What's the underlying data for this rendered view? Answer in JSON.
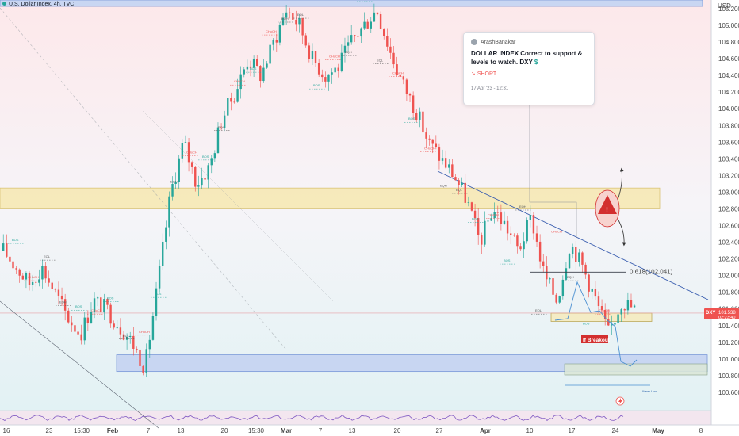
{
  "header": {
    "instrument": "U.S. Dollar Index, 4h, TVC"
  },
  "price_axis": {
    "currency": "USD",
    "ticks": [
      "105.200",
      "105.000",
      "104.800",
      "104.600",
      "104.400",
      "104.200",
      "104.000",
      "103.800",
      "103.600",
      "103.400",
      "103.200",
      "103.000",
      "102.800",
      "102.600",
      "102.400",
      "102.200",
      "102.000",
      "101.800",
      "101.600",
      "101.400",
      "101.200",
      "101.000",
      "100.800",
      "100.600"
    ],
    "current_symbol": "DXY",
    "current_price": "101.538",
    "countdown": "02:23:40"
  },
  "time_axis": {
    "labels": [
      "16",
      "23",
      "15:30",
      "Feb",
      "7",
      "13",
      "20",
      "15:30",
      "Mar",
      "7",
      "13",
      "20",
      "27",
      "Apr",
      "10",
      "17",
      "24",
      "May",
      "8"
    ]
  },
  "idea_card": {
    "author": "ArashBanakar",
    "title": "DOLLAR INDEX Correct to support & levels to watch. DXY",
    "title_symbol": "$",
    "direction": "SHORT",
    "date": "17 Apr '23 - 12:31"
  },
  "annotations": {
    "fib": "0.618(102.041)",
    "breakout": "If Breakout",
    "weak_low": "Weak Low",
    "lightning_icon": "lightning-icon",
    "warning_icon": "warning-icon"
  },
  "structure_labels": [
    "BOS",
    "CHoCH",
    "EQL",
    "EQH",
    "BOS",
    "CHoCH",
    "BOS",
    "EQL",
    "CHoCH",
    "BOS",
    "EQH",
    "CHoCH",
    "BOS",
    "EQL",
    "CHoCH",
    "BOS",
    "CHoCH",
    "EQH",
    "EQL",
    "BOS",
    "CHoCH",
    "EQH",
    "BOS",
    "EQL",
    "CHoCH",
    "BOS",
    "CHoCH",
    "EQH",
    "EQL",
    "BOS",
    "CHoCH",
    "BOS",
    "EQH",
    "EQL",
    "CHoCH",
    "EQH",
    "BOS",
    "CHoCH"
  ],
  "colors": {
    "up": "#26a69a",
    "down": "#ef5350",
    "resistance_zone": "#f7e9b5",
    "demand_zone": "#c5d3f2",
    "trendline": "#3b5fb0",
    "projection": "#4a8fd1",
    "warning": "#d32f2f"
  },
  "chart_data": {
    "type": "candlestick",
    "x": [
      "16",
      "23",
      "15:30",
      "Feb",
      "7",
      "13",
      "20",
      "15:30",
      "Mar",
      "7",
      "13",
      "20",
      "27",
      "Apr",
      "10",
      "17",
      "24",
      "May",
      "8"
    ],
    "ylim": [
      100.5,
      105.3
    ],
    "grid": false,
    "price_path": [
      102.3,
      102.1,
      101.9,
      102.1,
      101.8,
      101.5,
      101.3,
      101.7,
      101.6,
      101.4,
      101.2,
      100.9,
      101.9,
      103.0,
      103.6,
      103.1,
      103.3,
      103.9,
      104.2,
      104.6,
      104.4,
      104.8,
      105.2,
      105.0,
      104.6,
      104.4,
      104.5,
      104.8,
      105.0,
      105.2,
      104.7,
      104.3,
      104.0,
      103.6,
      103.4,
      103.2,
      102.9,
      102.4,
      102.8,
      102.6,
      102.3,
      102.7,
      102.0,
      101.7,
      102.4,
      102.1,
      101.7,
      101.3,
      101.7,
      101.6
    ],
    "zones": [
      {
        "name": "supply",
        "low": 102.8,
        "high": 103.05
      },
      {
        "name": "demand",
        "low": 100.85,
        "high": 101.05
      },
      {
        "name": "support-box",
        "low": 101.45,
        "high": 101.55
      }
    ],
    "levels": [
      {
        "name": "0.618(102.041)",
        "value": 102.041
      },
      {
        "name": "Weak Low",
        "value": 100.85
      }
    ]
  }
}
